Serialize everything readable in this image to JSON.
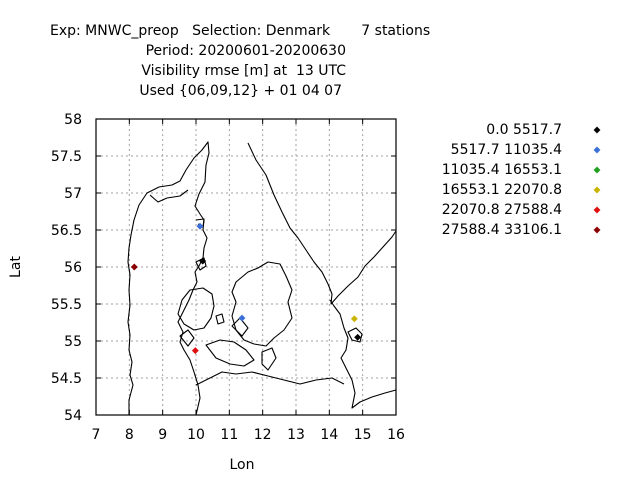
{
  "header": {
    "line1": "Exp: MNWC_preop   Selection: Denmark       7 stations",
    "line2": "Period: 20200601-20200630",
    "line3": "Visibility rmse [m] at  13 UTC",
    "line4": "Used {06,09,12} + 01 04 07"
  },
  "chart_data": {
    "type": "scatter",
    "title": "Visibility rmse [m] at  13 UTC",
    "xlabel": "Lon",
    "ylabel": "Lat",
    "xlim": [
      7,
      16
    ],
    "ylim": [
      54,
      58
    ],
    "x_ticks": [
      "7",
      "8",
      "9",
      "10",
      "11",
      "12",
      "13",
      "14",
      "15",
      "16"
    ],
    "y_ticks": [
      "54",
      "54.5",
      "55",
      "55.5",
      "56",
      "56.5",
      "57",
      "57.5",
      "58"
    ],
    "grid": true,
    "legend_position": "right",
    "legend": [
      {
        "label": "0.0 5517.7",
        "color": "#000000"
      },
      {
        "label": "5517.7 11035.4",
        "color": "#3a6fd8"
      },
      {
        "label": "11035.4 16553.1",
        "color": "#1fa01f"
      },
      {
        "label": "16553.1 22070.8",
        "color": "#c8b400"
      },
      {
        "label": "22070.8 27588.4",
        "color": "#e01010"
      },
      {
        "label": "27588.4 33106.1",
        "color": "#8b0000"
      }
    ],
    "points": [
      {
        "lon": 10.2,
        "lat": 56.08,
        "class": 0
      },
      {
        "lon": 14.85,
        "lat": 55.05,
        "class": 0
      },
      {
        "lon": 10.12,
        "lat": 56.55,
        "class": 1
      },
      {
        "lon": 11.38,
        "lat": 55.31,
        "class": 1
      },
      {
        "lon": 14.75,
        "lat": 55.3,
        "class": 3
      },
      {
        "lon": 9.98,
        "lat": 54.87,
        "class": 4
      },
      {
        "lon": 8.15,
        "lat": 56.0,
        "class": 5
      }
    ]
  }
}
